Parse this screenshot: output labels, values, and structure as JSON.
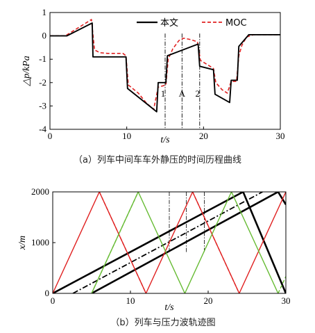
{
  "chart_data": [
    {
      "type": "line",
      "caption": "（a）列车中间车车外静压的时间历程曲线",
      "xlabel": "t/s",
      "ylabel": "△p/kPa",
      "xlim": [
        0,
        30
      ],
      "ylim": [
        -4,
        1
      ],
      "xticks": [
        0,
        10,
        20,
        30
      ],
      "yticks": [
        1,
        0,
        -1,
        -2,
        -3,
        -4
      ],
      "legend_position": "top-right",
      "series": [
        {
          "name": "本文",
          "color": "#000000",
          "style": "solid",
          "points": [
            [
              0,
              0
            ],
            [
              2.2,
              0
            ],
            [
              5.5,
              0.55
            ],
            [
              5.6,
              -0.9
            ],
            [
              9.9,
              -0.9
            ],
            [
              10.1,
              -2.25
            ],
            [
              13.9,
              -3.25
            ],
            [
              14.1,
              -2.0
            ],
            [
              15.1,
              -2.0
            ],
            [
              15.3,
              -0.85
            ],
            [
              19.3,
              -0.35
            ],
            [
              19.5,
              -1.3
            ],
            [
              21.3,
              -1.45
            ],
            [
              21.5,
              -2.5
            ],
            [
              23.4,
              -2.85
            ],
            [
              23.6,
              -1.9
            ],
            [
              24.4,
              -1.9
            ],
            [
              24.6,
              -0.45
            ],
            [
              25.9,
              0.05
            ],
            [
              26.1,
              0.05
            ],
            [
              30,
              0.05
            ]
          ]
        },
        {
          "name": "MOC",
          "color": "#e02020",
          "style": "dashed",
          "points": [
            [
              0,
              0
            ],
            [
              2.0,
              0
            ],
            [
              5.4,
              0.7
            ],
            [
              5.8,
              -0.6
            ],
            [
              6.5,
              -0.72
            ],
            [
              7.5,
              -0.75
            ],
            [
              9.5,
              -0.75
            ],
            [
              9.9,
              -0.85
            ],
            [
              10.2,
              -2.1
            ],
            [
              11.5,
              -2.45
            ],
            [
              12.5,
              -2.85
            ],
            [
              13.5,
              -3.15
            ],
            [
              14.1,
              -2.2
            ],
            [
              15.1,
              -2.1
            ],
            [
              15.4,
              -1.0
            ],
            [
              16.0,
              -0.55
            ],
            [
              16.8,
              -0.2
            ],
            [
              17.4,
              -0.1
            ],
            [
              18.2,
              -0.15
            ],
            [
              19.2,
              -0.25
            ],
            [
              19.6,
              -1.05
            ],
            [
              20.6,
              -1.25
            ],
            [
              21.3,
              -1.4
            ],
            [
              21.6,
              -2.0
            ],
            [
              22.4,
              -2.3
            ],
            [
              23.1,
              -2.45
            ],
            [
              23.6,
              -1.95
            ],
            [
              24.3,
              -1.95
            ],
            [
              24.6,
              -0.85
            ],
            [
              25.0,
              -0.4
            ],
            [
              25.6,
              -0.05
            ],
            [
              26.5,
              0.05
            ],
            [
              30,
              0.05
            ]
          ]
        }
      ],
      "annotations": [
        {
          "label": "1",
          "x": 15.0
        },
        {
          "label": "A",
          "x": 17.2
        },
        {
          "label": "2",
          "x": 19.5
        }
      ]
    },
    {
      "type": "line",
      "caption": "（b）列车与压力波轨迹图",
      "xlabel": "t/s",
      "ylabel": "x/m",
      "xlim": [
        0,
        30
      ],
      "ylim": [
        0,
        2000
      ],
      "xticks": [
        0,
        10,
        20,
        30
      ],
      "yticks": [
        0,
        1000,
        2000
      ],
      "series": [
        {
          "color": "#000000",
          "style": "solid",
          "width": 2.6,
          "points": [
            [
              0,
              0
            ],
            [
              24.5,
              2000
            ],
            [
              30,
              0
            ]
          ]
        },
        {
          "color": "#000000",
          "style": "solid",
          "width": 2.6,
          "points": [
            [
              5,
              0
            ],
            [
              29,
              2000
            ],
            [
              30,
              1750
            ]
          ]
        },
        {
          "color": "#000000",
          "style": "dashdot",
          "width": 1.8,
          "points": [
            [
              2.6,
              0
            ],
            [
              27,
              2000
            ]
          ]
        },
        {
          "color": "#e02020",
          "style": "solid",
          "width": 1.4,
          "points": [
            [
              0,
              0
            ],
            [
              6,
              2000
            ],
            [
              12,
              0
            ],
            [
              18,
              2000
            ],
            [
              24,
              0
            ],
            [
              30,
              2000
            ]
          ]
        },
        {
          "color": "#e02020",
          "style": "dashed",
          "width": 1.4,
          "points": [
            [
              6,
              2000
            ],
            [
              12,
              0
            ]
          ]
        },
        {
          "color": "#e02020",
          "style": "dashed",
          "width": 1.4,
          "points": [
            [
              18,
              2000
            ],
            [
              24,
              0
            ]
          ]
        },
        {
          "color": "#66bb33",
          "style": "solid",
          "width": 1.4,
          "points": [
            [
              5,
              0
            ],
            [
              11,
              2000
            ],
            [
              17,
              0
            ],
            [
              23,
              2000
            ],
            [
              29,
              0
            ]
          ]
        },
        {
          "color": "#66bb33",
          "style": "dashed",
          "width": 1.4,
          "points": [
            [
              5,
              0
            ],
            [
              11,
              2000
            ]
          ]
        },
        {
          "color": "#66bb33",
          "style": "dashed",
          "width": 1.4,
          "points": [
            [
              29,
              0
            ],
            [
              30,
              333
            ]
          ]
        },
        {
          "color": "#3a5a9a",
          "style": "dashed",
          "width": 1.4,
          "points": [
            [
              30,
              2000
            ],
            [
              30.4,
              1800
            ]
          ]
        }
      ],
      "markers_x": [
        15.0,
        17.2,
        19.5
      ]
    }
  ]
}
